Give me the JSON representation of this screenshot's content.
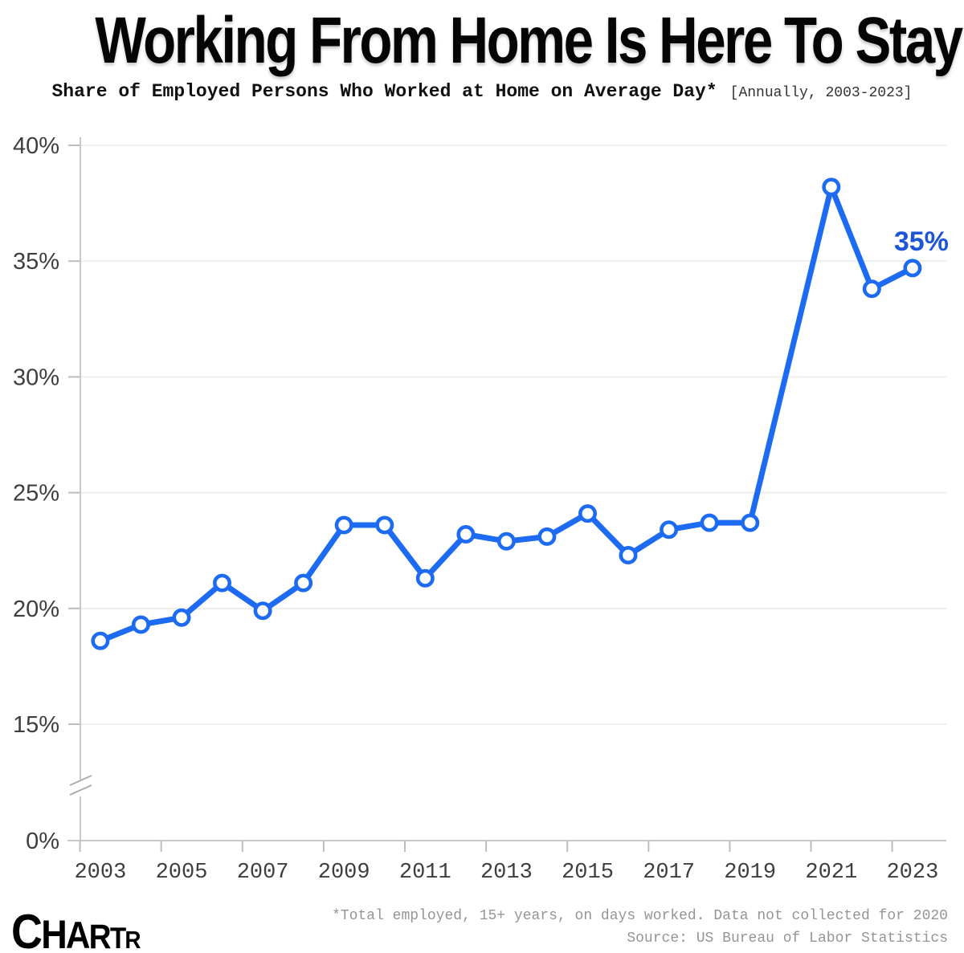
{
  "header": {
    "title": "Working From Home Is Here To Stay",
    "subtitle": "Share of Employed Persons Who Worked at Home on Average Day*",
    "subtitle_note": "[Annually, 2003-2023]"
  },
  "chart_data": {
    "type": "line",
    "series_name": "Share of employed persons who worked at home on an average day",
    "x": [
      2003,
      2004,
      2005,
      2006,
      2007,
      2008,
      2009,
      2010,
      2011,
      2012,
      2013,
      2014,
      2015,
      2016,
      2017,
      2018,
      2019,
      2021,
      2022,
      2023
    ],
    "values": [
      18.6,
      19.3,
      19.6,
      21.1,
      19.9,
      21.1,
      23.6,
      23.6,
      21.3,
      23.2,
      22.9,
      23.1,
      24.1,
      22.3,
      23.4,
      23.7,
      23.7,
      38.2,
      33.8,
      34.7
    ],
    "missing_years": [
      2020
    ],
    "ylim": [
      0,
      40
    ],
    "y_tick_values": [
      40,
      35,
      30,
      25,
      20,
      15,
      0
    ],
    "y_tick_labels": [
      "40%",
      "35%",
      "30%",
      "25%",
      "20%",
      "15%",
      "0%"
    ],
    "x_tick_labels": [
      "2003",
      "2005",
      "2007",
      "2009",
      "2011",
      "2013",
      "2015",
      "2017",
      "2019",
      "2021",
      "2023"
    ],
    "axis_break_between": [
      0,
      13
    ],
    "grid": "horizontal",
    "legend": "none",
    "annotation": {
      "text": "35%",
      "year": 2023,
      "value": 34.7
    },
    "colors": {
      "line": "#1d6bf2",
      "marker_fill": "#ffffff",
      "annotation": "#1d55d8",
      "gridline": "#ebebeb",
      "axis": "#c8c8c8",
      "tick": "#bdbdbd",
      "axis_label": "#3e3e3e"
    }
  },
  "footer": {
    "note": "*Total employed, 15+ years, on days worked. Data not collected for 2020",
    "source": "Source: US Bureau of Labor Statistics",
    "logo_letters": [
      "C",
      "H",
      "A",
      "R",
      "T",
      "R"
    ]
  }
}
